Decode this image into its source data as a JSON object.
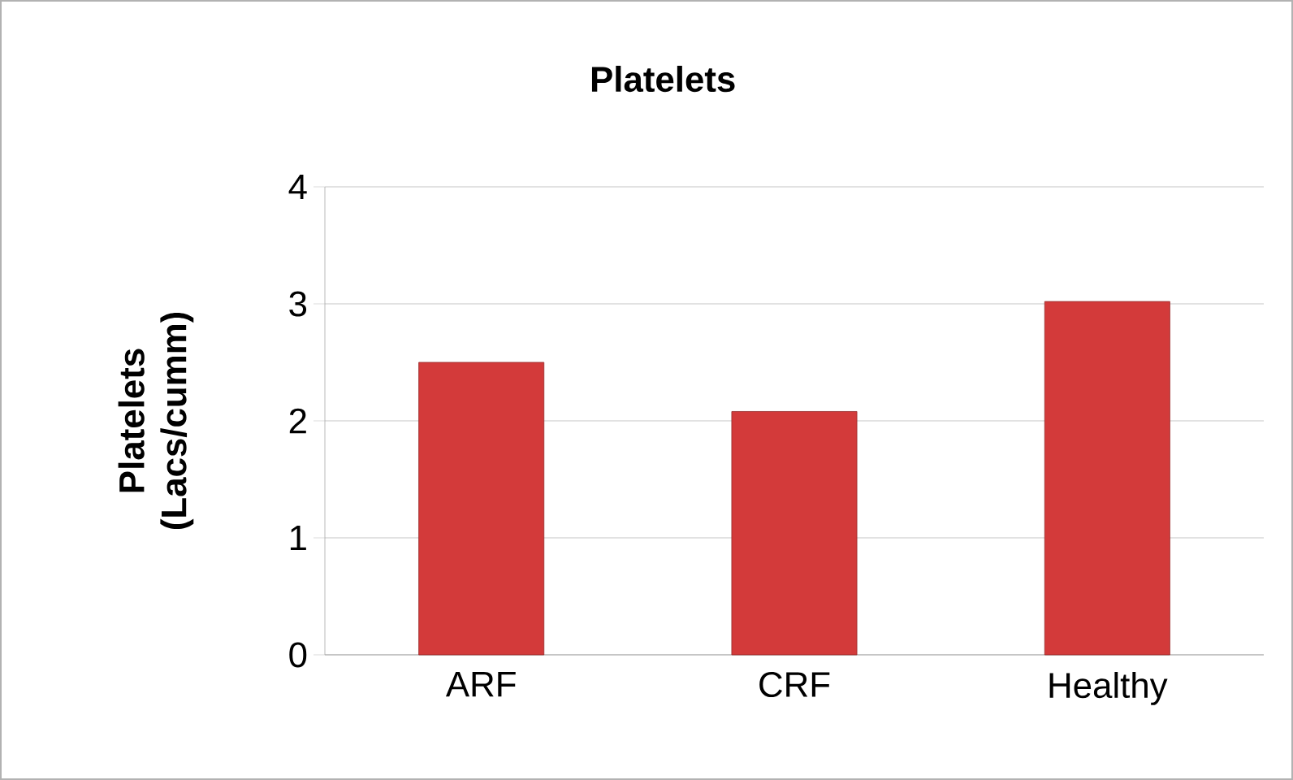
{
  "chart_data": {
    "type": "bar",
    "title": "Platelets",
    "ylabel": "Platelets (Lacs/cumm)",
    "categories": [
      "ARF",
      "CRF",
      "Healthy"
    ],
    "values": [
      2.5,
      2.08,
      3.02
    ],
    "color": "#d33a3a",
    "ylim": [
      0,
      4
    ],
    "yticks": [
      0,
      1,
      2,
      3,
      4
    ],
    "grid": "y"
  }
}
